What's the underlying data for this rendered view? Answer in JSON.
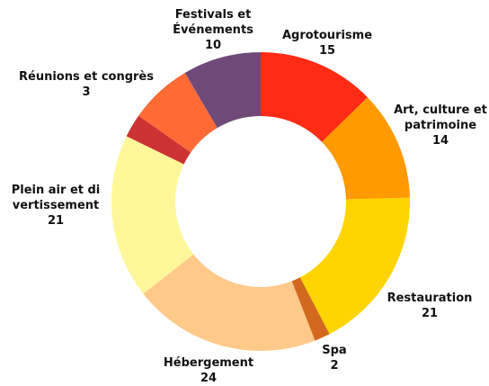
{
  "chart_data": {
    "type": "donut",
    "categories": [
      "Agrotourisme",
      "Art, culture et patrimoine",
      "Restauration",
      "Spa",
      "Hébergement",
      "Plein air et divertissement",
      "Réunions et congrès",
      null,
      "Festivals et Événements"
    ],
    "values": [
      15,
      14,
      21,
      2,
      24,
      21,
      3,
      8,
      10
    ],
    "colors": [
      "#ff2b14",
      "#ff9a00",
      "#ffd400",
      "#d2691e",
      "#ffc98a",
      "#fff799",
      "#cc3333",
      "#ff6a35",
      "#6f4a78"
    ]
  }
}
